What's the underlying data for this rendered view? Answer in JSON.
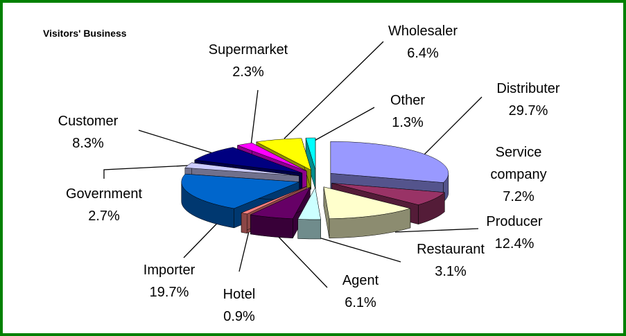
{
  "chart_data": {
    "type": "pie3d",
    "title": "Visitors' Business",
    "categories": [
      "Distributer",
      "Service company",
      "Producer",
      "Restaurant",
      "Agent",
      "Hotel",
      "Importer",
      "Government",
      "Customer",
      "Supermarket",
      "Wholesaler",
      "Other"
    ],
    "values": [
      29.7,
      7.2,
      12.4,
      3.1,
      6.1,
      0.9,
      19.7,
      2.7,
      8.3,
      2.3,
      6.4,
      1.3
    ],
    "value_labels": [
      "29.7%",
      "7.2%",
      "12.4%",
      "3.1%",
      "6.1%",
      "0.9%",
      "19.7%",
      "2.7%",
      "8.3%",
      "2.3%",
      "6.4%",
      "1.3%"
    ],
    "colors": [
      "#9999ff",
      "#993366",
      "#ffffcc",
      "#ccffff",
      "#660066",
      "#ff8080",
      "#0066cc",
      "#ccccff",
      "#000080",
      "#ff00ff",
      "#ffff00",
      "#00ffff"
    ]
  }
}
